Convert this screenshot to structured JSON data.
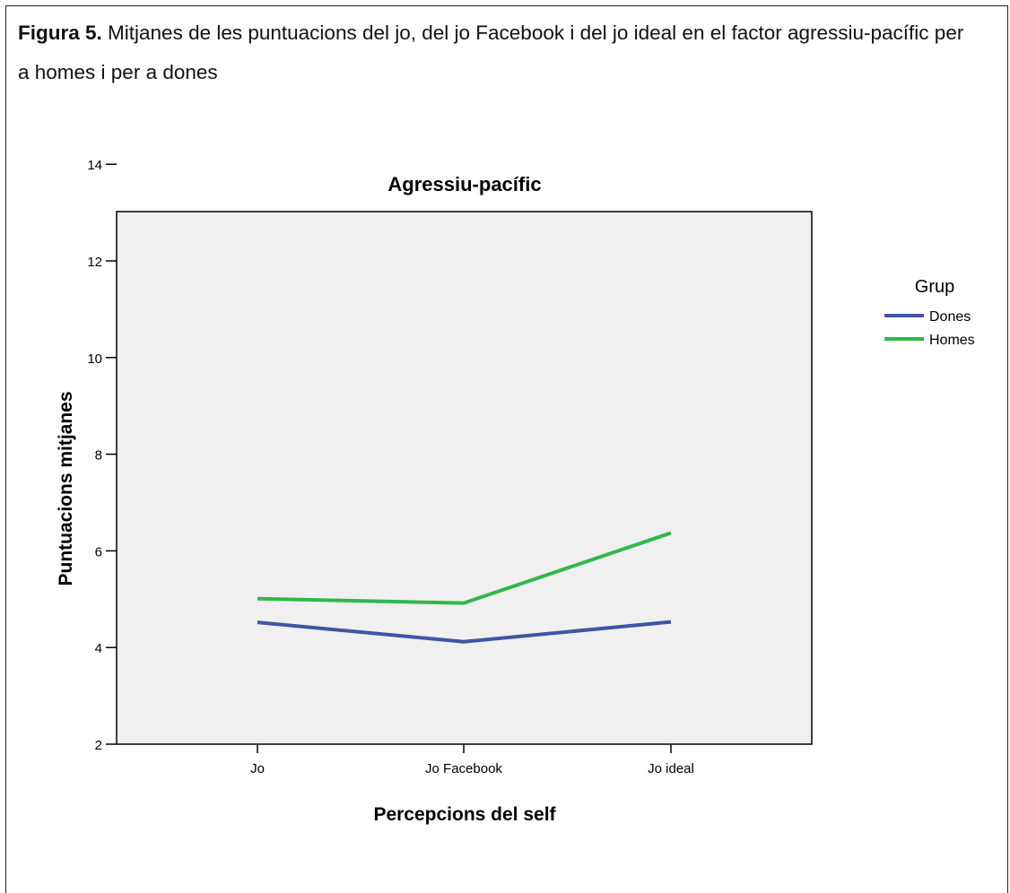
{
  "caption": {
    "label": "Figura 5.",
    "text": " Mitjanes de les puntuacions del jo, del jo Facebook i del jo ideal en el factor agressiu-pacífic per a homes i per a dones"
  },
  "chart_data": {
    "type": "line",
    "title": "Agressiu-pacífic",
    "xlabel": "Percepcions del self",
    "ylabel": "Puntuacions mitjanes",
    "categories": [
      "Jo",
      "Jo Facebook",
      "Jo ideal"
    ],
    "ylim": [
      2,
      14.6
    ],
    "yticks": [
      2,
      4,
      6,
      8,
      10,
      12,
      14
    ],
    "grid": false,
    "legend": {
      "title": "Grup",
      "placement": "right"
    },
    "series": [
      {
        "name": "Dones",
        "color": "#3f55a6",
        "values": [
          4.52,
          4.12,
          4.53
        ]
      },
      {
        "name": "Homes",
        "color": "#2fb84a",
        "values": [
          5.01,
          4.92,
          6.37
        ]
      }
    ]
  }
}
